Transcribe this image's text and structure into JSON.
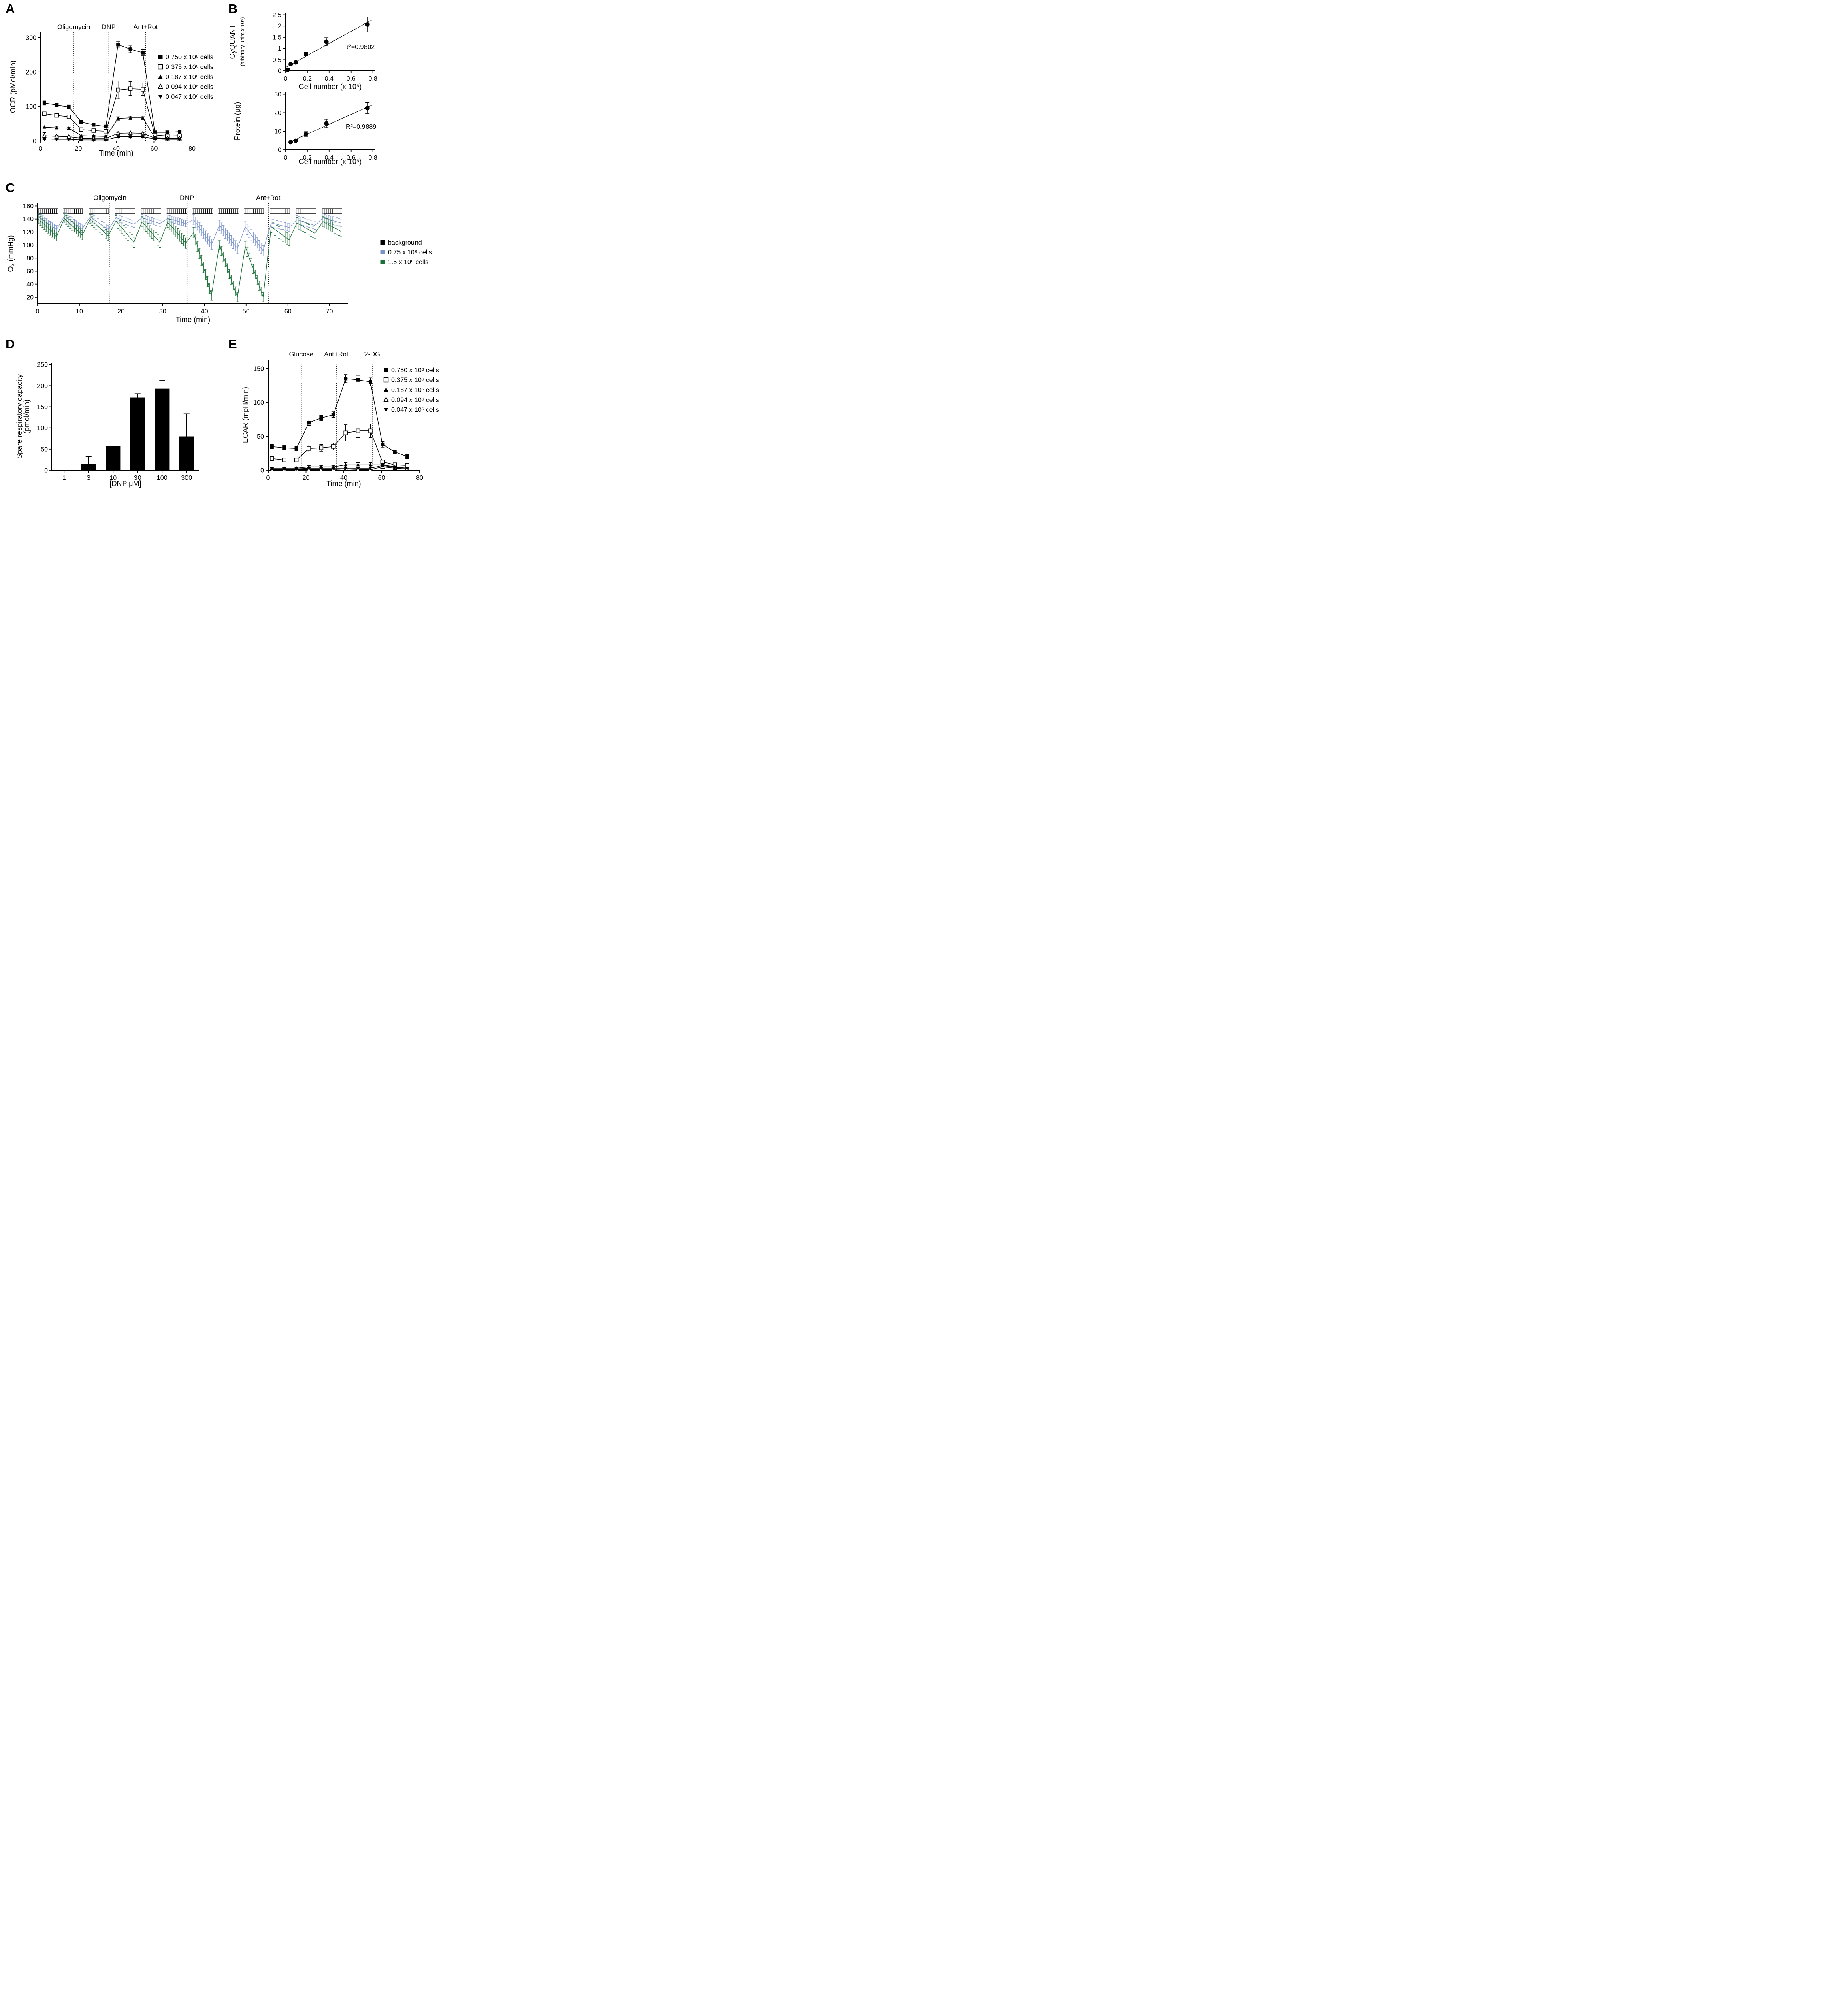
{
  "figure": {
    "panels": [
      {
        "letter": "A"
      },
      {
        "letter": "B"
      },
      {
        "letter": "C"
      },
      {
        "letter": "D"
      },
      {
        "letter": "E"
      }
    ]
  },
  "chart_data": [
    {
      "id": "A",
      "type": "line",
      "title": "",
      "x": {
        "min": 0,
        "max": 80,
        "ticks": [
          0,
          20,
          40,
          60,
          80
        ],
        "label": "Time (min)"
      },
      "y": {
        "min": 0,
        "max": 315,
        "ticks": [
          0,
          100,
          200,
          300
        ],
        "label": "OCR (pMol/min)"
      },
      "events": [
        {
          "x": 17.5,
          "label": "Oligomycin"
        },
        {
          "x": 36,
          "label": "DNP"
        },
        {
          "x": 55.5,
          "label": "Ant+Rot"
        }
      ],
      "x_values": [
        2,
        8.5,
        15,
        21.5,
        28,
        34.5,
        41,
        47.5,
        54,
        60.5,
        67,
        73.5
      ],
      "series": [
        {
          "name": "0.750 x 10⁶ cells",
          "marker": "square-filled",
          "y": [
            110,
            104,
            99,
            55,
            47,
            42,
            280,
            266,
            256,
            25,
            25,
            27
          ],
          "err": [
            6,
            5,
            5,
            5,
            4,
            4,
            8,
            10,
            9,
            4,
            4,
            5
          ]
        },
        {
          "name": "0.375 x 10⁶ cells",
          "marker": "square-open",
          "y": [
            79,
            74,
            70,
            33,
            30,
            28,
            148,
            152,
            150,
            17,
            14,
            15
          ],
          "err": [
            5,
            4,
            4,
            3,
            3,
            3,
            26,
            20,
            18,
            3,
            3,
            3
          ]
        },
        {
          "name": "0.187 x 10⁶ cells",
          "marker": "triangle-filled",
          "y": [
            40,
            38,
            37,
            15,
            14,
            13,
            65,
            67,
            67,
            9,
            8,
            8
          ],
          "err": [
            3,
            3,
            3,
            2,
            2,
            2,
            5,
            5,
            5,
            2,
            2,
            2
          ]
        },
        {
          "name": "0.094 x 10⁶ cells",
          "marker": "triangle-open",
          "y": [
            15,
            13,
            12,
            8,
            7,
            7,
            22,
            23,
            22,
            8,
            7,
            7
          ],
          "err": [
            9,
            3,
            2,
            2,
            2,
            2,
            3,
            3,
            3,
            2,
            2,
            2
          ]
        },
        {
          "name": "0.047 x 10⁶ cells",
          "marker": "triangle-down-filled",
          "y": [
            6,
            5,
            5,
            3,
            3,
            3,
            12,
            12,
            12,
            6,
            5,
            5
          ],
          "err": [
            2,
            2,
            2,
            1,
            1,
            1,
            2,
            2,
            2,
            1,
            1,
            1
          ]
        }
      ]
    },
    {
      "id": "B1",
      "type": "scatter",
      "x": {
        "min": 0,
        "max": 0.82,
        "ticks": [
          0,
          0.2,
          0.4,
          0.6,
          0.8
        ],
        "label": "Cell number (x 10⁶)"
      },
      "y": {
        "min": 0,
        "max": 2.6,
        "ticks": [
          0,
          0.5,
          1,
          1.5,
          2,
          2.5
        ],
        "label": "CyQUANT",
        "label2": "(arbitrary units x 10⁵)"
      },
      "points": {
        "x": [
          0.02,
          0.047,
          0.094,
          0.187,
          0.375,
          0.75
        ],
        "y": [
          0.05,
          0.3,
          0.38,
          0.75,
          1.3,
          2.07
        ],
        "err": [
          0.02,
          0.04,
          0.05,
          0.07,
          0.18,
          0.33
        ]
      },
      "fit": {
        "x1": 0,
        "x2": 0.79
      },
      "annotation": "R²=0.9802"
    },
    {
      "id": "B2",
      "type": "scatter",
      "x": {
        "min": 0,
        "max": 0.82,
        "ticks": [
          0,
          0.2,
          0.4,
          0.6,
          0.8
        ],
        "label": "Cell number (x 10⁶)"
      },
      "y": {
        "min": 0,
        "max": 31,
        "ticks": [
          0,
          10,
          20,
          30
        ],
        "label": "Protein (μg)"
      },
      "points": {
        "x": [
          0.047,
          0.094,
          0.187,
          0.375,
          0.75
        ],
        "y": [
          4.2,
          5,
          8.5,
          14.2,
          22.5
        ],
        "err": [
          0.5,
          0.7,
          1.3,
          2.2,
          2.9
        ]
      },
      "fit": {
        "x1": 0.02,
        "x2": 0.79
      },
      "annotation": "R²=0.9889"
    },
    {
      "id": "C",
      "type": "sawtooth",
      "x": {
        "min": 0,
        "max": 74.5,
        "ticks": [
          0,
          10,
          20,
          30,
          40,
          50,
          60,
          70
        ],
        "label": "Time (min)"
      },
      "y": {
        "min": 10,
        "max": 164,
        "ticks": [
          20,
          40,
          60,
          80,
          100,
          120,
          140,
          160
        ],
        "label": "O₂ (mmHg)"
      },
      "events": [
        {
          "x": 17.3,
          "label": "Oligomycin"
        },
        {
          "x": 35.8,
          "label": "DNP"
        },
        {
          "x": 55.3,
          "label": "Ant+Rot"
        }
      ],
      "cycle_duration": 4.3,
      "cycle_starts": [
        0.2,
        6.4,
        12.6,
        18.8,
        25,
        31.2,
        37.4,
        43.6,
        49.8,
        56,
        62.2,
        68.4
      ],
      "series": [
        {
          "name": "background",
          "color": "#000000",
          "connect": false,
          "from": [
            152,
            152,
            152,
            152,
            152,
            152,
            152,
            152,
            152,
            152,
            152,
            152
          ],
          "to": [
            152,
            152,
            152,
            152,
            152,
            152,
            152,
            152,
            152,
            152,
            152,
            152
          ],
          "err": [
            4,
            4,
            4,
            4,
            4,
            4,
            4,
            4,
            4,
            4,
            4,
            4
          ]
        },
        {
          "name": "0.75 x 10⁶ cells",
          "color": "#7b93cb",
          "connect": true,
          "from": [
            143,
            144,
            143,
            142,
            142,
            141,
            139,
            130,
            128,
            134,
            139,
            142
          ],
          "to": [
            124,
            125,
            124,
            132,
            133,
            133,
            101,
            95,
            91,
            127,
            130,
            134
          ],
          "err": [
            6,
            6,
            6,
            5,
            5,
            5,
            8,
            8,
            8,
            6,
            6,
            6
          ]
        },
        {
          "name": "1.5 x 10⁶ cells",
          "color": "#1e7039",
          "connect": true,
          "from": [
            140,
            141,
            140,
            137,
            136,
            135,
            119,
            100,
            98,
            128,
            134,
            136
          ],
          "to": [
            113,
            115,
            114,
            104,
            104,
            103,
            23,
            20,
            20,
            108,
            118,
            121
          ],
          "err": [
            7,
            7,
            7,
            8,
            8,
            8,
            8,
            7,
            7,
            9,
            8,
            8
          ]
        }
      ]
    },
    {
      "id": "D",
      "type": "bar",
      "categories": [
        "1",
        "3",
        "10",
        "30",
        "100",
        "300"
      ],
      "values": [
        0,
        15,
        57,
        172,
        193,
        80
      ],
      "errors": [
        0,
        17,
        31,
        9,
        19,
        53
      ],
      "bar_color": "#000000",
      "x": {
        "label": "[DNP μM]"
      },
      "y": {
        "min": 0,
        "max": 254,
        "ticks": [
          0,
          50,
          100,
          150,
          200,
          250
        ],
        "label": "Spare respiratory capacity",
        "label2": "(pmol/min)"
      }
    },
    {
      "id": "E",
      "type": "line",
      "x": {
        "min": 0,
        "max": 80,
        "ticks": [
          0,
          20,
          40,
          60,
          80
        ],
        "label": "Time (min)"
      },
      "y": {
        "min": 0,
        "max": 163,
        "ticks": [
          0,
          50,
          100,
          150
        ],
        "label": "ECAR (mpH/min)"
      },
      "events": [
        {
          "x": 17.5,
          "label": "Glucose"
        },
        {
          "x": 36,
          "label": "Ant+Rot"
        },
        {
          "x": 55,
          "label": "2-DG"
        }
      ],
      "x_values": [
        2,
        8.5,
        15,
        21.5,
        28,
        34.5,
        41,
        47.5,
        54,
        60.5,
        67,
        73.5
      ],
      "series": [
        {
          "name": "0.750 x 10⁶ cells",
          "marker": "square-filled",
          "y": [
            35,
            33,
            32,
            70,
            77,
            82,
            135,
            133,
            130,
            38,
            27,
            20
          ],
          "err": [
            3,
            3,
            3,
            4,
            4,
            4,
            6,
            6,
            6,
            4,
            3,
            3
          ]
        },
        {
          "name": "0.375 x 10⁶ cells",
          "marker": "square-open",
          "y": [
            17,
            15,
            15,
            32,
            33,
            35,
            55,
            58,
            58,
            12,
            8,
            7
          ],
          "err": [
            3,
            3,
            3,
            5,
            5,
            5,
            12,
            10,
            10,
            3,
            2,
            2
          ]
        },
        {
          "name": "0.187 x 10⁶ cells",
          "marker": "triangle-filled",
          "y": [
            3,
            3,
            3,
            5,
            5,
            5,
            8,
            8,
            8,
            8,
            5,
            3
          ],
          "err": [
            1,
            1,
            1,
            2,
            2,
            2,
            3,
            3,
            3,
            2,
            1,
            1
          ]
        },
        {
          "name": "0.094 x 10⁶ cells",
          "marker": "triangle-open",
          "y": [
            1,
            1,
            1,
            1,
            1,
            1,
            2,
            1,
            1,
            5,
            3,
            2
          ],
          "err": [
            1,
            1,
            1,
            1,
            1,
            1,
            1,
            1,
            1,
            2,
            1,
            1
          ]
        },
        {
          "name": "0.047 x 10⁶ cells",
          "marker": "triangle-down-filled",
          "y": [
            2,
            2,
            2,
            3,
            3,
            3,
            3,
            3,
            3,
            7,
            4,
            3
          ],
          "err": [
            1,
            1,
            1,
            1,
            1,
            1,
            1,
            1,
            1,
            2,
            1,
            1
          ]
        }
      ]
    }
  ]
}
